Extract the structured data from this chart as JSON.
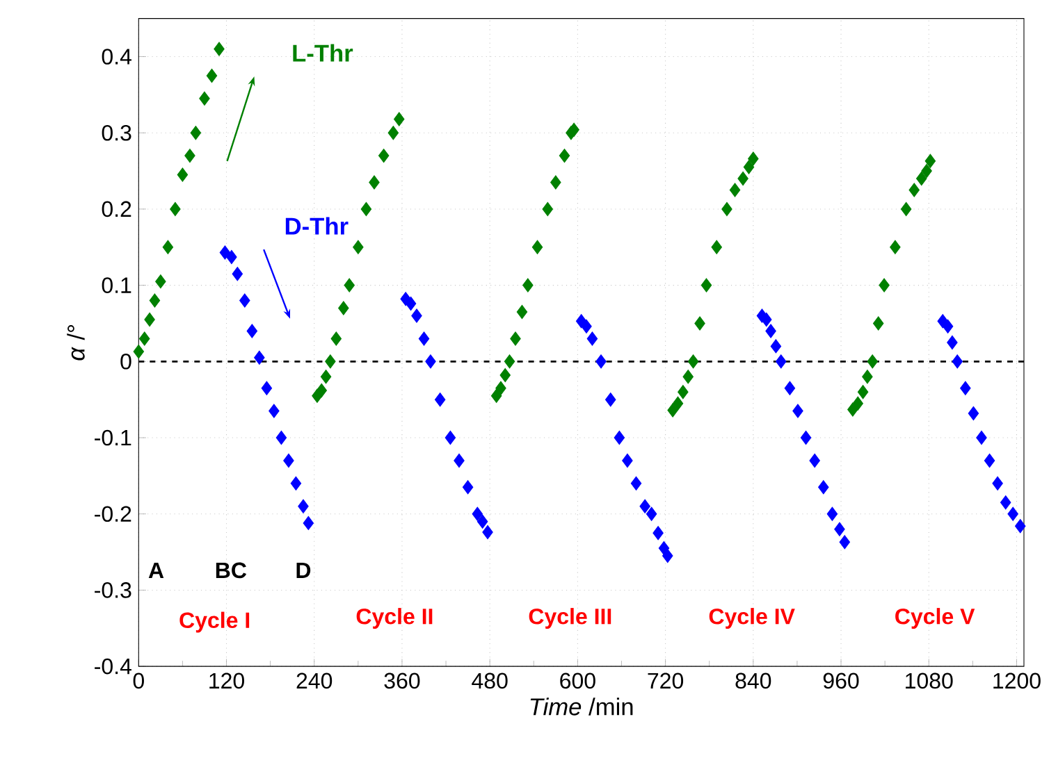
{
  "chart_data": {
    "type": "scatter",
    "xlabel": "*Time* /min",
    "ylabel": "*α* /°",
    "xlim": [
      0,
      1210
    ],
    "ylim": [
      -0.4,
      0.45
    ],
    "xticks": [
      0,
      120,
      240,
      360,
      480,
      600,
      720,
      840,
      960,
      1080,
      1200
    ],
    "yticks": [
      -0.4,
      -0.3,
      -0.2,
      -0.1,
      0,
      0.1,
      0.2,
      0.3,
      0.4
    ],
    "grid": true,
    "marker": "diamond",
    "series": [
      {
        "name": "L-Thr",
        "color": "#008000",
        "x": [
          0,
          8,
          15,
          22,
          30,
          40,
          50,
          60,
          70,
          78,
          90,
          100,
          110,
          244,
          250,
          256,
          262,
          270,
          280,
          288,
          300,
          311,
          322,
          335,
          348,
          356,
          489,
          495,
          501,
          507,
          515,
          524,
          532,
          545,
          559,
          570,
          582,
          591,
          595,
          730,
          737,
          744,
          751,
          758,
          767,
          776,
          790,
          804,
          815,
          826,
          834,
          840,
          976,
          983,
          990,
          996,
          1003,
          1011,
          1019,
          1034,
          1049,
          1060,
          1070,
          1077,
          1082
        ],
        "values": [
          0.013,
          0.03,
          0.055,
          0.08,
          0.105,
          0.15,
          0.2,
          0.245,
          0.27,
          0.3,
          0.345,
          0.375,
          0.41,
          -0.045,
          -0.038,
          -0.02,
          0,
          0.03,
          0.07,
          0.1,
          0.15,
          0.2,
          0.235,
          0.27,
          0.3,
          0.318,
          -0.045,
          -0.035,
          -0.018,
          0,
          0.03,
          0.065,
          0.1,
          0.15,
          0.2,
          0.235,
          0.27,
          0.3,
          0.304,
          -0.064,
          -0.055,
          -0.04,
          -0.02,
          0,
          0.05,
          0.1,
          0.15,
          0.2,
          0.225,
          0.24,
          0.255,
          0.266,
          -0.063,
          -0.055,
          -0.04,
          -0.02,
          0,
          0.05,
          0.1,
          0.15,
          0.2,
          0.225,
          0.24,
          0.25,
          0.263
        ]
      },
      {
        "name": "D-Thr",
        "color": "#0000ff",
        "x": [
          118,
          127,
          135,
          145,
          155,
          165,
          175,
          185,
          195,
          205,
          215,
          225,
          232,
          365,
          372,
          380,
          390,
          399,
          412,
          426,
          438,
          450,
          463,
          470,
          477,
          605,
          612,
          620,
          632,
          645,
          657,
          668,
          680,
          692,
          701,
          710,
          718,
          723,
          852,
          858,
          864,
          871,
          878,
          890,
          901,
          912,
          924,
          936,
          948,
          958,
          965,
          1099,
          1106,
          1112,
          1119,
          1130,
          1141,
          1152,
          1163,
          1174,
          1185,
          1195,
          1205
        ],
        "values": [
          0.143,
          0.137,
          0.115,
          0.08,
          0.04,
          0.005,
          -0.035,
          -0.065,
          -0.1,
          -0.13,
          -0.16,
          -0.19,
          -0.212,
          0.082,
          0.076,
          0.06,
          0.03,
          0,
          -0.05,
          -0.1,
          -0.13,
          -0.165,
          -0.2,
          -0.21,
          -0.224,
          0.053,
          0.046,
          0.03,
          0,
          -0.05,
          -0.1,
          -0.13,
          -0.16,
          -0.19,
          -0.2,
          -0.225,
          -0.245,
          -0.255,
          0.06,
          0.055,
          0.04,
          0.02,
          0,
          -0.035,
          -0.065,
          -0.1,
          -0.13,
          -0.165,
          -0.2,
          -0.22,
          -0.237,
          0.053,
          0.046,
          0.025,
          0,
          -0.035,
          -0.068,
          -0.1,
          -0.13,
          -0.16,
          -0.185,
          -0.2,
          -0.216
        ]
      }
    ],
    "ref_lines": [
      {
        "axis": "y",
        "value": 0,
        "color": "#000000",
        "line_style": "dashed"
      }
    ],
    "annotations": [
      "A",
      "BC",
      "D",
      "Cycle I",
      "Cycle II",
      "Cycle III",
      "Cycle IV",
      "Cycle V"
    ]
  }
}
